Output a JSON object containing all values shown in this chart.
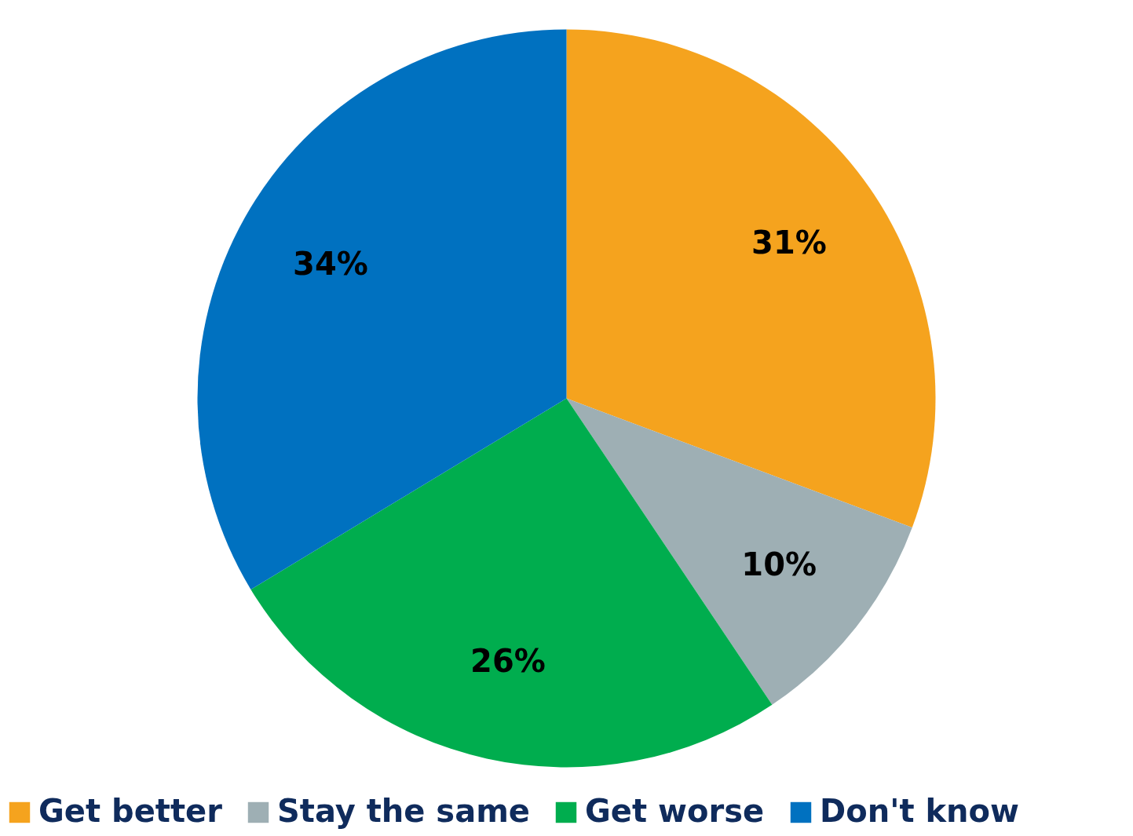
{
  "chart_data": {
    "type": "pie",
    "categories": [
      "Get better",
      "Stay the same",
      "Get worse",
      "Don't know"
    ],
    "values": [
      31,
      10,
      26,
      34
    ],
    "colors": [
      "#f5a31e",
      "#9eafb4",
      "#00ad4e",
      "#0071c0"
    ],
    "value_labels": [
      "31%",
      "10%",
      "26%",
      "34%"
    ],
    "legend": "bottom"
  }
}
